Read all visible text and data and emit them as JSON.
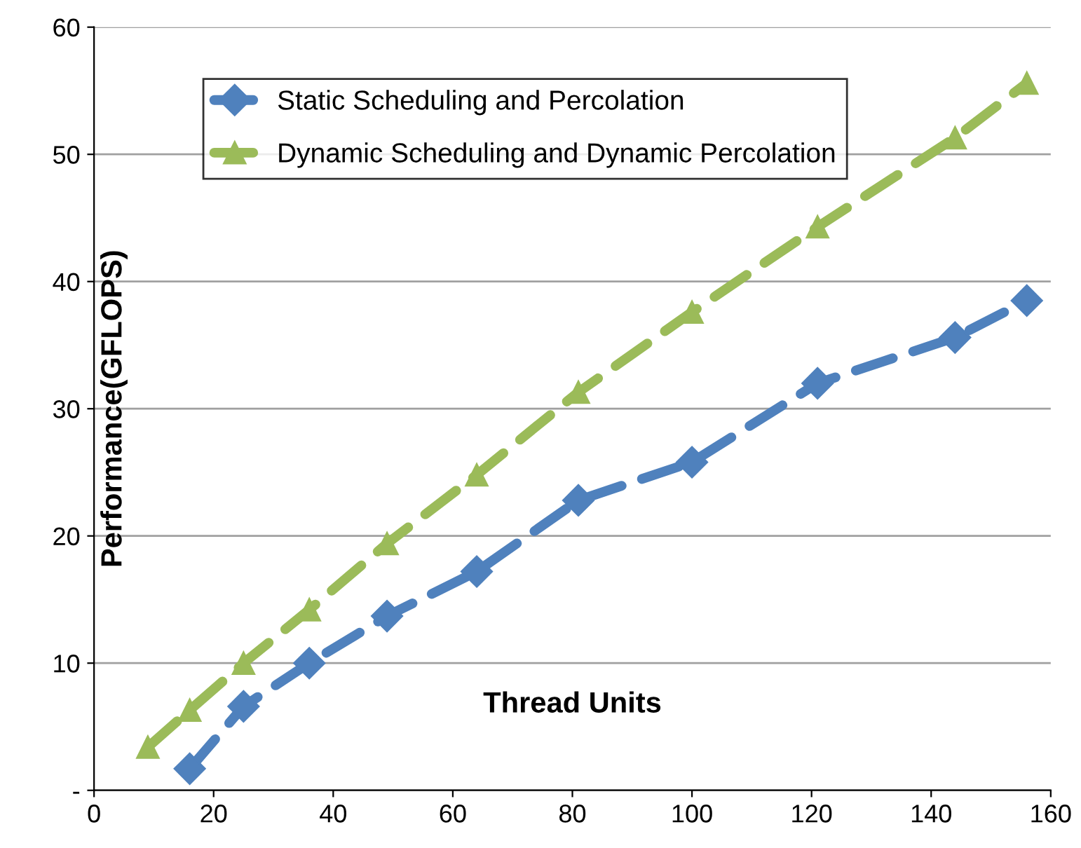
{
  "chart_data": {
    "type": "line",
    "xlabel": "Thread Units",
    "ylabel": "Performance(GFLOPS)",
    "xlim": [
      0,
      160
    ],
    "xticks": [
      0,
      20,
      40,
      60,
      80,
      100,
      120,
      140,
      160
    ],
    "ylim": [
      0,
      60
    ],
    "yticks": [
      {
        "value": 0,
        "label": "-"
      },
      10,
      20,
      30,
      40,
      50,
      60
    ],
    "grid": "y",
    "legend": "top left",
    "line_style": "dashed",
    "series": [
      {
        "name": "Static Scheduling and Percolation",
        "color": "#4f81bd",
        "marker": "diamond",
        "x": [
          16,
          25,
          36,
          49,
          64,
          81,
          100,
          121,
          144,
          156
        ],
        "values": [
          1.7,
          6.6,
          10.0,
          13.7,
          17.2,
          22.8,
          25.8,
          32.0,
          35.6,
          38.5
        ]
      },
      {
        "name": "Dynamic Scheduling and Dynamic Percolation",
        "color": "#9bbb59",
        "marker": "triangle",
        "x": [
          9,
          16,
          25,
          36,
          49,
          64,
          81,
          100,
          121,
          144,
          156
        ],
        "values": [
          3.4,
          6.3,
          10.0,
          14.2,
          19.4,
          24.8,
          31.3,
          37.6,
          44.3,
          51.3,
          55.6
        ]
      }
    ]
  }
}
